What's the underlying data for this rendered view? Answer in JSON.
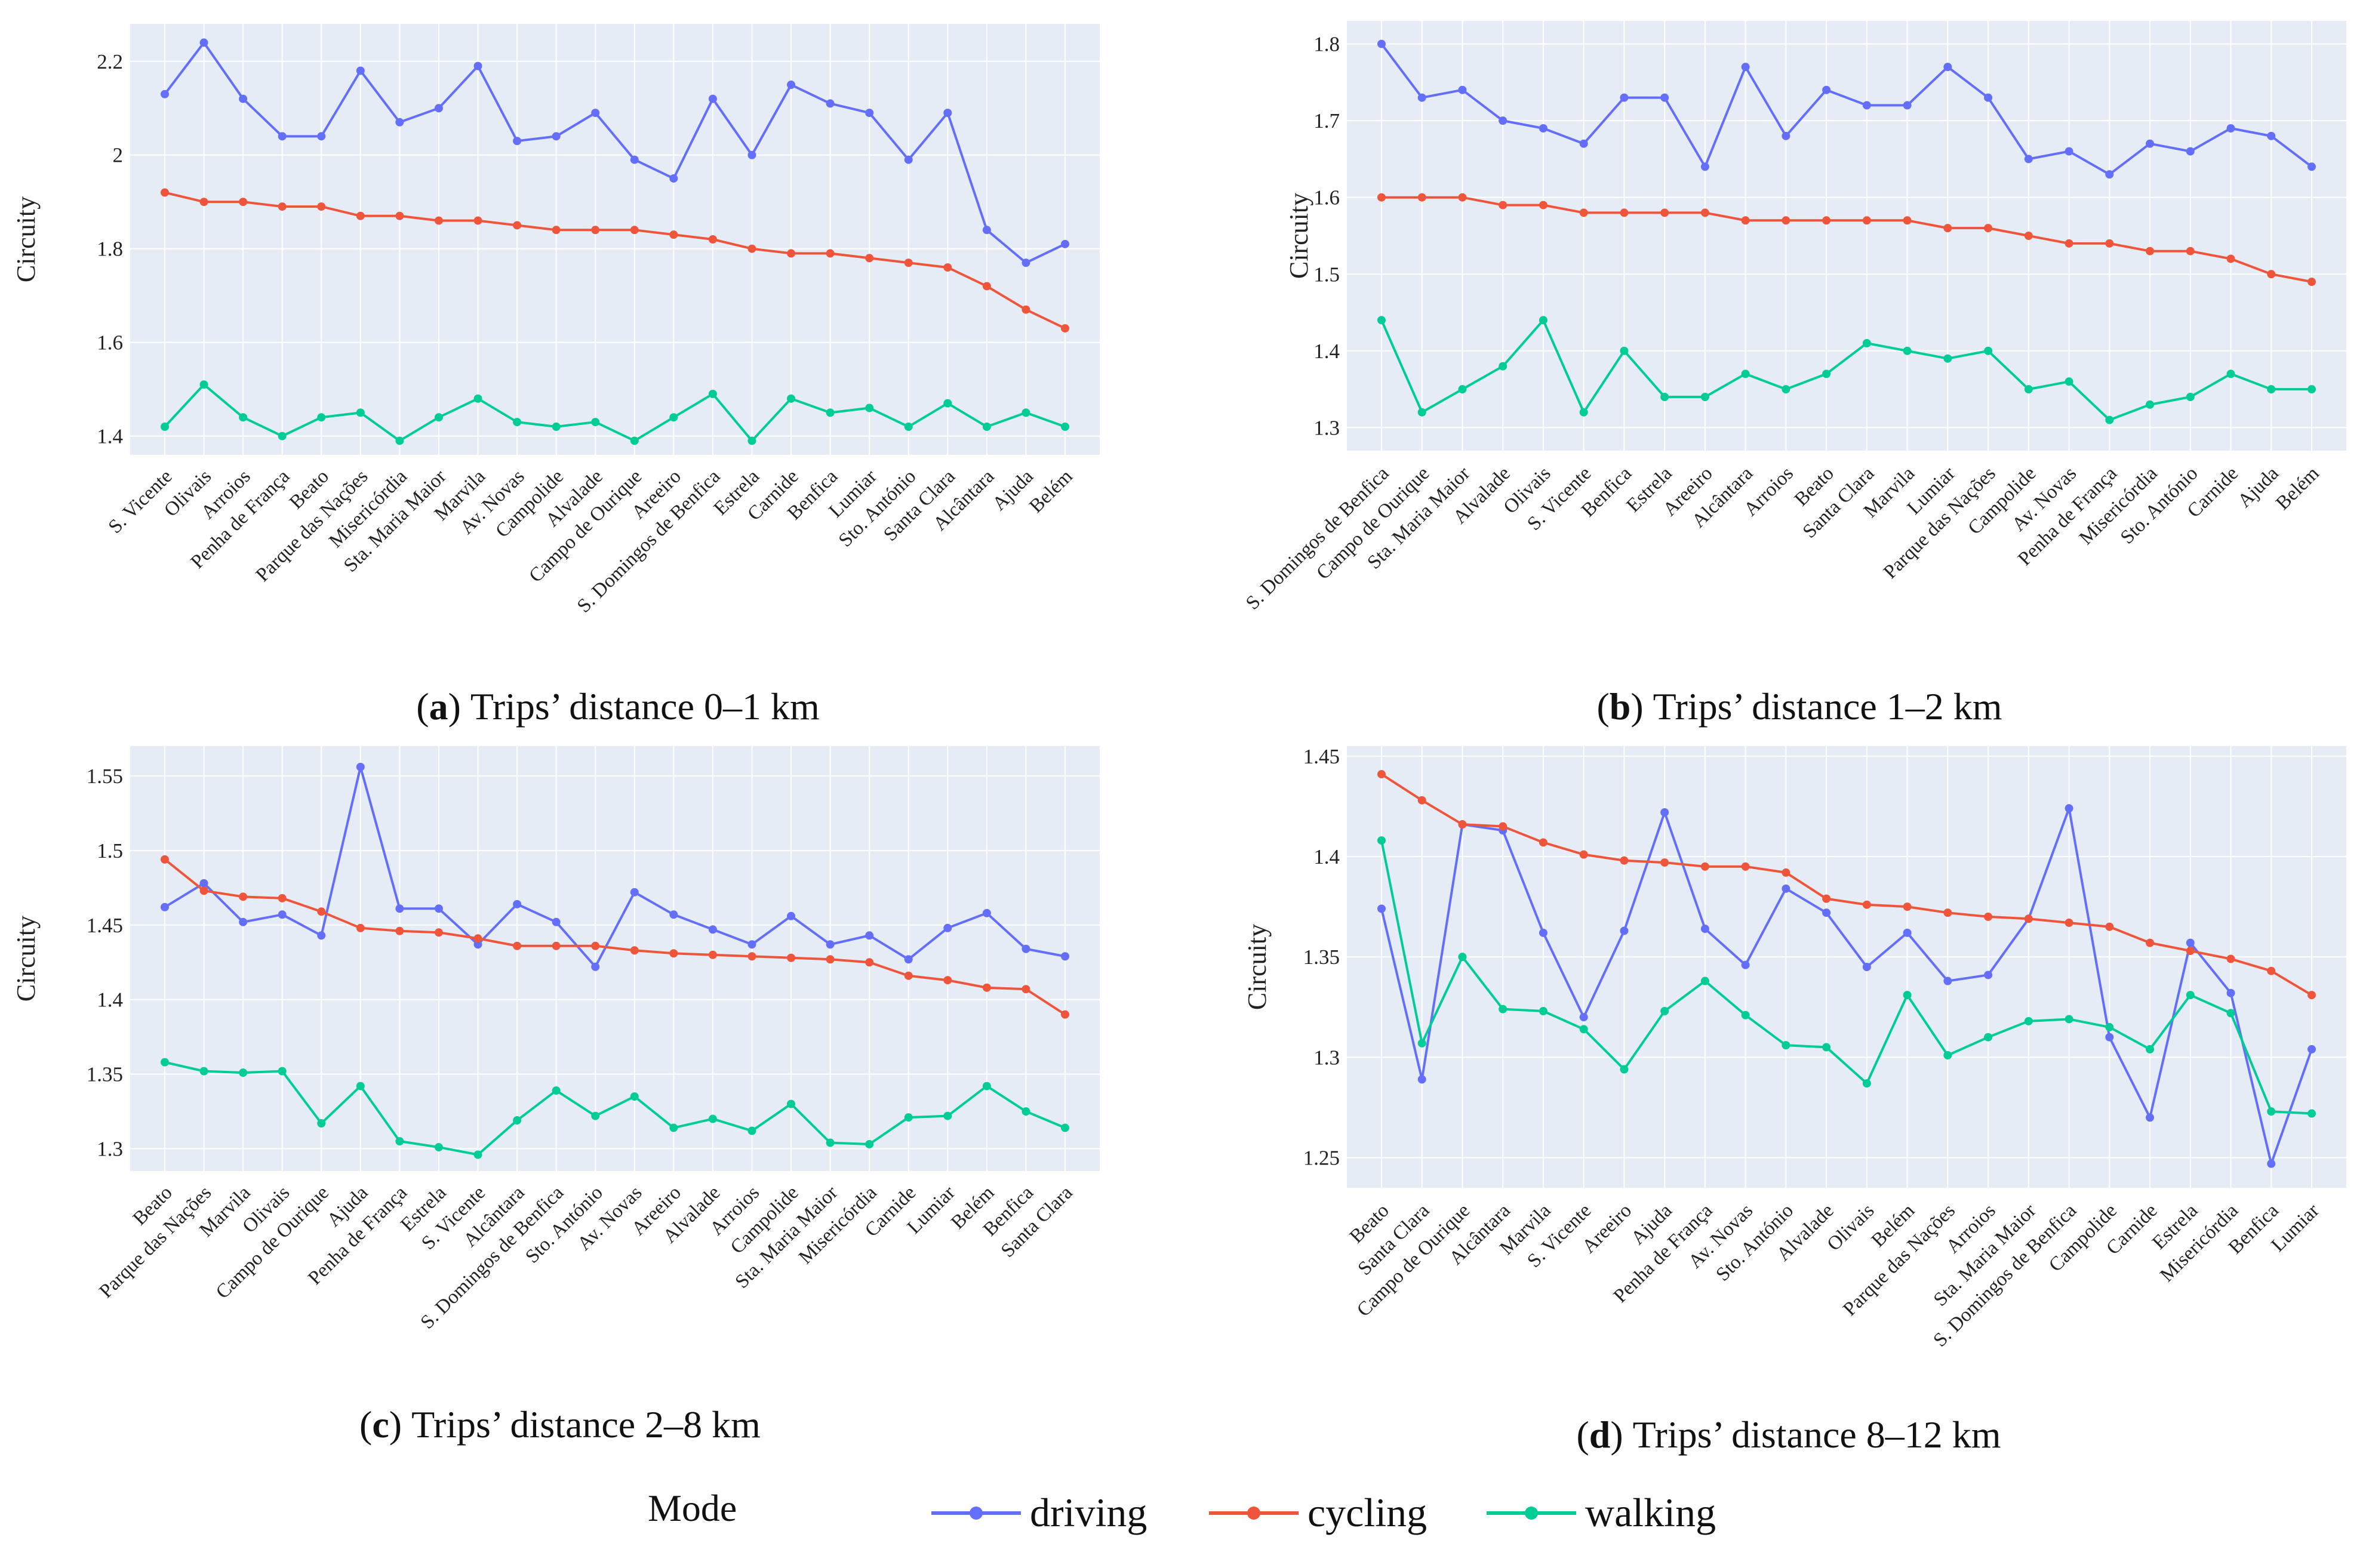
{
  "colors": {
    "driving": "#636efa",
    "cycling": "#ef553b",
    "walking": "#00cc96",
    "plot_bg": "#e5ecf6"
  },
  "legend": {
    "title": "Mode",
    "items": [
      {
        "key": "driving",
        "label": "driving"
      },
      {
        "key": "cycling",
        "label": "cycling"
      },
      {
        "key": "walking",
        "label": "walking"
      }
    ]
  },
  "chart_data": [
    {
      "type": "line",
      "caption_letter": "a",
      "caption_text": " Trips’ distance 0–1 km",
      "ylabel": "Circuity",
      "ylim": [
        1.36,
        2.28
      ],
      "yticks": [
        "1.4",
        "1.6",
        "1.8",
        "2",
        "2.2"
      ],
      "categories": [
        "S. Vicente",
        "Olivais",
        "Arroios",
        "Penha de França",
        "Beato",
        "Parque das Nações",
        "Misericórdia",
        "Sta. Maria Maior",
        "Marvila",
        "Av. Novas",
        "Campolide",
        "Alvalade",
        "Campo de Ourique",
        "Areeiro",
        "S. Domingos de Benfica",
        "Estrela",
        "Carnide",
        "Benfica",
        "Lumiar",
        "Sto. António",
        "Santa Clara",
        "Alcântara",
        "Ajuda",
        "Belém"
      ],
      "series": [
        {
          "name": "driving",
          "values": [
            2.13,
            2.24,
            2.12,
            2.04,
            2.04,
            2.18,
            2.07,
            2.1,
            2.19,
            2.03,
            2.04,
            2.09,
            1.99,
            1.95,
            2.12,
            2.0,
            2.15,
            2.11,
            2.09,
            1.99,
            2.09,
            1.84,
            1.77,
            1.81
          ]
        },
        {
          "name": "cycling",
          "values": [
            1.92,
            1.9,
            1.9,
            1.89,
            1.89,
            1.87,
            1.87,
            1.86,
            1.86,
            1.85,
            1.84,
            1.84,
            1.84,
            1.83,
            1.82,
            1.8,
            1.79,
            1.79,
            1.78,
            1.77,
            1.76,
            1.72,
            1.67,
            1.63
          ]
        },
        {
          "name": "walking",
          "values": [
            1.42,
            1.51,
            1.44,
            1.4,
            1.44,
            1.45,
            1.39,
            1.44,
            1.48,
            1.43,
            1.42,
            1.43,
            1.39,
            1.44,
            1.49,
            1.39,
            1.48,
            1.45,
            1.46,
            1.42,
            1.47,
            1.42,
            1.45,
            1.42
          ]
        }
      ]
    },
    {
      "type": "line",
      "caption_letter": "b",
      "caption_text": " Trips’ distance 1–2 km",
      "ylabel": "Circuity",
      "ylim": [
        1.27,
        1.83
      ],
      "yticks": [
        "1.3",
        "1.4",
        "1.5",
        "1.6",
        "1.7",
        "1.8"
      ],
      "categories": [
        "S. Domingos de Benfica",
        "Campo de Ourique",
        "Sta. Maria Maior",
        "Alvalade",
        "Olivais",
        "S. Vicente",
        "Benfica",
        "Estrela",
        "Areeiro",
        "Alcântara",
        "Arroios",
        "Beato",
        "Santa Clara",
        "Marvila",
        "Lumiar",
        "Parque das Nações",
        "Campolide",
        "Av. Novas",
        "Penha de França",
        "Misericórdia",
        "Sto. António",
        "Carnide",
        "Ajuda",
        "Belém"
      ],
      "series": [
        {
          "name": "driving",
          "values": [
            1.8,
            1.73,
            1.74,
            1.7,
            1.69,
            1.67,
            1.73,
            1.73,
            1.64,
            1.77,
            1.68,
            1.74,
            1.72,
            1.72,
            1.77,
            1.73,
            1.65,
            1.66,
            1.63,
            1.67,
            1.66,
            1.69,
            1.68,
            1.64
          ]
        },
        {
          "name": "cycling",
          "values": [
            1.6,
            1.6,
            1.6,
            1.59,
            1.59,
            1.58,
            1.58,
            1.58,
            1.58,
            1.57,
            1.57,
            1.57,
            1.57,
            1.57,
            1.56,
            1.56,
            1.55,
            1.54,
            1.54,
            1.53,
            1.53,
            1.52,
            1.5,
            1.49
          ]
        },
        {
          "name": "walking",
          "values": [
            1.44,
            1.32,
            1.35,
            1.38,
            1.44,
            1.32,
            1.4,
            1.34,
            1.34,
            1.37,
            1.35,
            1.37,
            1.41,
            1.4,
            1.39,
            1.4,
            1.35,
            1.36,
            1.31,
            1.33,
            1.34,
            1.37,
            1.35,
            1.35
          ]
        }
      ]
    },
    {
      "type": "line",
      "caption_letter": "c",
      "caption_text": " Trips’ distance 2–8 km",
      "ylabel": "Circuity",
      "ylim": [
        1.285,
        1.57
      ],
      "yticks": [
        "1.3",
        "1.35",
        "1.4",
        "1.45",
        "1.5",
        "1.55"
      ],
      "categories": [
        "Beato",
        "Parque das Nações",
        "Marvila",
        "Olivais",
        "Campo de Ourique",
        "Ajuda",
        "Penha de França",
        "Estrela",
        "S. Vicente",
        "Alcântara",
        "S. Domingos de Benfica",
        "Sto. António",
        "Av. Novas",
        "Areeiro",
        "Alvalade",
        "Arroios",
        "Campolide",
        "Sta. Maria Maior",
        "Misericórdia",
        "Carnide",
        "Lumiar",
        "Belém",
        "Benfica",
        "Santa Clara"
      ],
      "series": [
        {
          "name": "driving",
          "values": [
            1.462,
            1.478,
            1.452,
            1.457,
            1.443,
            1.556,
            1.461,
            1.461,
            1.437,
            1.464,
            1.452,
            1.422,
            1.472,
            1.457,
            1.447,
            1.437,
            1.456,
            1.437,
            1.443,
            1.427,
            1.448,
            1.458,
            1.434,
            1.429
          ]
        },
        {
          "name": "cycling",
          "values": [
            1.494,
            1.473,
            1.469,
            1.468,
            1.459,
            1.448,
            1.446,
            1.445,
            1.441,
            1.436,
            1.436,
            1.436,
            1.433,
            1.431,
            1.43,
            1.429,
            1.428,
            1.427,
            1.425,
            1.416,
            1.413,
            1.408,
            1.407,
            1.39
          ]
        },
        {
          "name": "walking",
          "values": [
            1.358,
            1.352,
            1.351,
            1.352,
            1.317,
            1.342,
            1.305,
            1.301,
            1.296,
            1.319,
            1.339,
            1.322,
            1.335,
            1.314,
            1.32,
            1.312,
            1.33,
            1.304,
            1.303,
            1.321,
            1.322,
            1.342,
            1.325,
            1.314
          ]
        }
      ]
    },
    {
      "type": "line",
      "caption_letter": "d",
      "caption_text": " Trips’ distance 8–12 km",
      "ylabel": "Circuity",
      "ylim": [
        1.235,
        1.455
      ],
      "yticks": [
        "1.25",
        "1.3",
        "1.35",
        "1.4",
        "1.45"
      ],
      "categories": [
        "Beato",
        "Santa Clara",
        "Campo de Ourique",
        "Alcântara",
        "Marvila",
        "S. Vicente",
        "Areeiro",
        "Ajuda",
        "Penha de França",
        "Av. Novas",
        "Sto. António",
        "Alvalade",
        "Olivais",
        "Belém",
        "Parque das Nações",
        "Arroios",
        "Sta. Maria Maior",
        "S. Domingos de Benfica",
        "Campolide",
        "Carnide",
        "Estrela",
        "Misericórdia",
        "Benfica",
        "Lumiar"
      ],
      "series": [
        {
          "name": "driving",
          "values": [
            1.374,
            1.289,
            1.416,
            1.413,
            1.362,
            1.32,
            1.363,
            1.422,
            1.364,
            1.346,
            1.384,
            1.372,
            1.345,
            1.362,
            1.338,
            1.341,
            1.369,
            1.424,
            1.31,
            1.27,
            1.357,
            1.332,
            1.247,
            1.304
          ]
        },
        {
          "name": "cycling",
          "values": [
            1.441,
            1.428,
            1.416,
            1.415,
            1.407,
            1.401,
            1.398,
            1.397,
            1.395,
            1.395,
            1.392,
            1.379,
            1.376,
            1.375,
            1.372,
            1.37,
            1.369,
            1.367,
            1.365,
            1.357,
            1.353,
            1.349,
            1.343,
            1.331
          ]
        },
        {
          "name": "walking",
          "values": [
            1.408,
            1.307,
            1.35,
            1.324,
            1.323,
            1.314,
            1.294,
            1.323,
            1.338,
            1.321,
            1.306,
            1.305,
            1.287,
            1.331,
            1.301,
            1.31,
            1.318,
            1.319,
            1.315,
            1.304,
            1.331,
            1.322,
            1.273,
            1.272
          ]
        }
      ]
    }
  ]
}
